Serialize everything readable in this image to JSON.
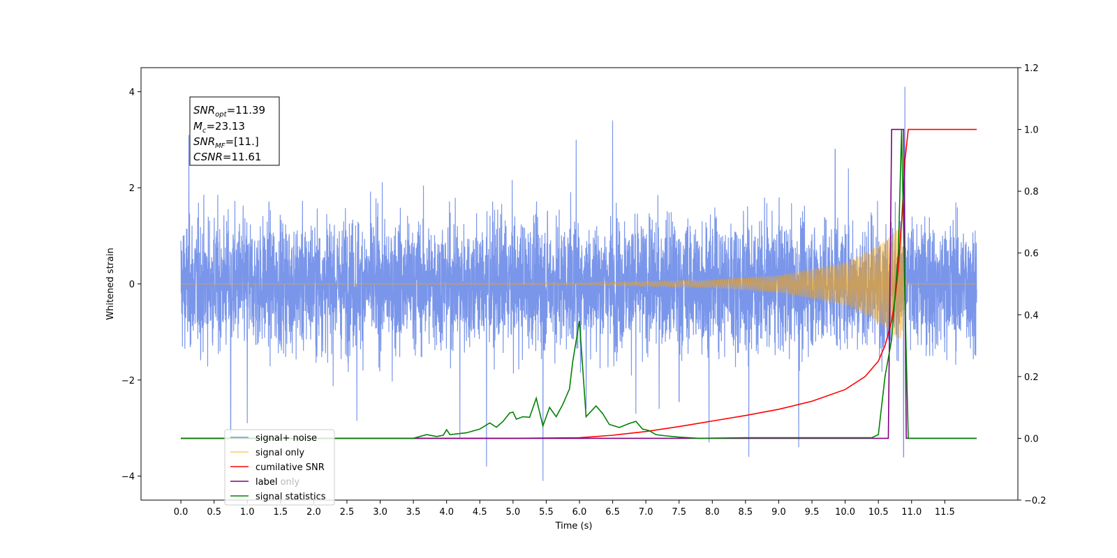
{
  "chart_data": {
    "type": "line",
    "xlabel": "Time (s)",
    "ylabel": "Whitened strain",
    "xlim": [
      -0.6,
      12.6
    ],
    "ylim_left": [
      -4.5,
      4.5
    ],
    "ylim_right": [
      -0.2,
      1.2
    ],
    "x_ticks": [
      0.0,
      0.5,
      1.0,
      1.5,
      2.0,
      2.5,
      3.0,
      3.5,
      4.0,
      4.5,
      5.0,
      5.5,
      6.0,
      6.5,
      7.0,
      7.5,
      8.0,
      8.5,
      9.0,
      9.5,
      10.0,
      10.5,
      11.0,
      11.5
    ],
    "x_tick_labels": [
      "0.0",
      "0.5",
      "1.0",
      "1.5",
      "2.0",
      "2.5",
      "3.0",
      "3.5",
      "4.0",
      "4.5",
      "5.0",
      "5.5",
      "6.0",
      "6.5",
      "7.0",
      "7.5",
      "8.0",
      "8.5",
      "9.0",
      "9.5",
      "10.0",
      "10.5",
      "11.0",
      "11.5"
    ],
    "y_left_ticks": [
      4,
      2,
      0,
      -2,
      -4
    ],
    "y_left_tick_labels": [
      "4",
      "2",
      "0",
      "−2",
      "−4"
    ],
    "y_right_ticks": [
      1.2,
      1.0,
      0.8,
      0.6,
      0.4,
      0.2,
      0.0,
      -0.2
    ],
    "y_right_tick_labels": [
      "1.2",
      "1.0",
      "0.8",
      "0.6",
      "0.4",
      "0.2",
      "0.0",
      "−0.2"
    ],
    "grid": false,
    "legend_position": "bottom-left",
    "info_box": {
      "snr_opt": {
        "sym": "SNR",
        "sub": "opt",
        "value": "=11.39"
      },
      "mc": {
        "sym": "M",
        "sub": "c",
        "value": "=23.13"
      },
      "snr_mf": {
        "sym": "SNR",
        "sub": "MF",
        "value": "=[11.]"
      },
      "csnr": {
        "sym": "CSNR",
        "sub": "",
        "value": "=11.61"
      }
    },
    "series": [
      {
        "name": "signal+ noise",
        "axis": "left",
        "color": "#4169e1",
        "description_of_values": "whitened noisy strain, roughly ±2 band with spikes",
        "x_range": [
          0.0,
          11.98
        ],
        "envelope": 1.6,
        "spikes": [
          [
            0.75,
            -3.1
          ],
          [
            1.0,
            -2.9
          ],
          [
            2.65,
            -2.85
          ],
          [
            4.2,
            -3.2
          ],
          [
            4.6,
            -3.8
          ],
          [
            5.45,
            -4.1
          ],
          [
            6.1,
            -2.6
          ],
          [
            6.5,
            3.4
          ],
          [
            6.85,
            -2.7
          ],
          [
            7.2,
            -2.6
          ],
          [
            7.5,
            -2.45
          ],
          [
            7.95,
            -3.3
          ],
          [
            8.55,
            -3.6
          ],
          [
            9.3,
            -3.4
          ],
          [
            10.05,
            2.4
          ],
          [
            10.9,
            4.1
          ],
          [
            10.88,
            -3.6
          ],
          [
            0.12,
            3.1
          ],
          [
            5.95,
            3.0
          ],
          [
            9.85,
            2.8
          ]
        ]
      },
      {
        "name": "signal only",
        "axis": "left",
        "color": "#ffa500",
        "description_of_values": "chirp with amplitude rising toward ~10.9 s",
        "amplitude_points": [
          [
            0.0,
            0.0
          ],
          [
            6.0,
            0.02
          ],
          [
            8.0,
            0.08
          ],
          [
            9.0,
            0.18
          ],
          [
            10.0,
            0.45
          ],
          [
            10.5,
            0.8
          ],
          [
            10.85,
            1.2
          ],
          [
            10.92,
            0.0
          ],
          [
            11.98,
            0.0
          ]
        ]
      },
      {
        "name": "cumilative SNR",
        "axis": "right",
        "color": "#ff0000",
        "x": [
          0.0,
          5.0,
          6.0,
          6.5,
          7.0,
          7.5,
          8.0,
          8.5,
          9.0,
          9.5,
          10.0,
          10.3,
          10.5,
          10.6,
          10.7,
          10.75,
          10.8,
          10.85,
          10.9,
          10.95,
          11.98
        ],
        "y": [
          0.0,
          0.0,
          0.002,
          0.01,
          0.022,
          0.038,
          0.056,
          0.074,
          0.094,
          0.12,
          0.158,
          0.2,
          0.25,
          0.3,
          0.38,
          0.45,
          0.55,
          0.7,
          0.9,
          1.0,
          1.0
        ]
      },
      {
        "name": "label",
        "axis": "right",
        "color": "#800080",
        "x": [
          0.0,
          10.65,
          10.7,
          10.88,
          10.92,
          11.98
        ],
        "y": [
          0.0,
          0.0,
          1.0,
          1.0,
          0.0,
          0.0
        ]
      },
      {
        "name": "label only",
        "axis": "right",
        "color": "#800080",
        "hidden_in_plot": true,
        "x": [],
        "y": []
      },
      {
        "name": "signal statistics",
        "axis": "right",
        "color": "#008000",
        "x": [
          0.0,
          3.5,
          3.7,
          3.85,
          3.95,
          4.0,
          4.05,
          4.3,
          4.5,
          4.65,
          4.75,
          4.85,
          4.95,
          5.0,
          5.05,
          5.15,
          5.25,
          5.35,
          5.45,
          5.55,
          5.65,
          5.75,
          5.85,
          5.9,
          6.0,
          6.1,
          6.25,
          6.35,
          6.45,
          6.6,
          6.75,
          6.85,
          6.95,
          7.05,
          7.15,
          7.3,
          7.5,
          7.8,
          8.5,
          9.5,
          10.4,
          10.5,
          10.6,
          10.7,
          10.8,
          10.85,
          10.9,
          10.95,
          11.98
        ],
        "y": [
          0.0,
          0.0,
          0.012,
          0.006,
          0.01,
          0.028,
          0.012,
          0.018,
          0.03,
          0.05,
          0.036,
          0.055,
          0.082,
          0.085,
          0.062,
          0.07,
          0.068,
          0.13,
          0.04,
          0.1,
          0.07,
          0.11,
          0.16,
          0.25,
          0.38,
          0.07,
          0.105,
          0.08,
          0.045,
          0.035,
          0.048,
          0.055,
          0.03,
          0.025,
          0.012,
          0.008,
          0.004,
          0.0,
          0.002,
          0.002,
          0.002,
          0.012,
          0.2,
          0.32,
          0.6,
          1.0,
          0.45,
          0.0,
          0.0
        ]
      }
    ]
  }
}
